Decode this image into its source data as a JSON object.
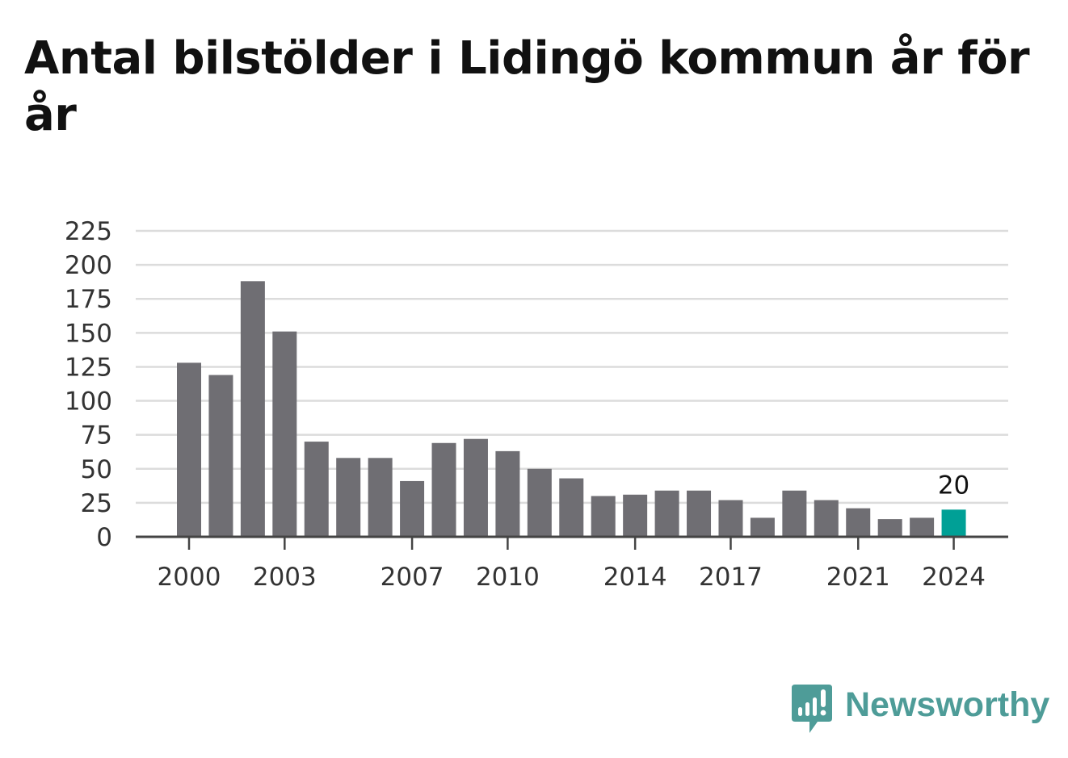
{
  "title": "Antal bilstölder i Lidingö kommun år för år",
  "brand": {
    "name": "Newsworthy"
  },
  "colors": {
    "bar": "#6f6e73",
    "highlight": "#00a096",
    "grid": "#dcdcdc",
    "axis": "#444444",
    "text": "#333333",
    "brand": "#4e9c98"
  },
  "chart_data": {
    "type": "bar",
    "categories": [
      "2000",
      "2001",
      "2002",
      "2003",
      "2004",
      "2005",
      "2006",
      "2007",
      "2008",
      "2009",
      "2010",
      "2011",
      "2012",
      "2013",
      "2014",
      "2015",
      "2016",
      "2017",
      "2018",
      "2019",
      "2020",
      "2021",
      "2022",
      "2023",
      "2024"
    ],
    "values": [
      128,
      119,
      188,
      151,
      70,
      58,
      58,
      41,
      69,
      72,
      63,
      50,
      43,
      30,
      31,
      34,
      34,
      27,
      14,
      34,
      27,
      21,
      13,
      14,
      20
    ],
    "x_tick_labels": [
      "2000",
      "2003",
      "2007",
      "2010",
      "2014",
      "2017",
      "2021",
      "2024"
    ],
    "y_ticks": [
      0,
      25,
      50,
      75,
      100,
      125,
      150,
      175,
      200,
      225
    ],
    "ylim": [
      0,
      225
    ],
    "highlight_category": "2024",
    "annotation": {
      "category": "2024",
      "text": "20"
    },
    "grid": true,
    "xlabel": "",
    "ylabel": ""
  }
}
